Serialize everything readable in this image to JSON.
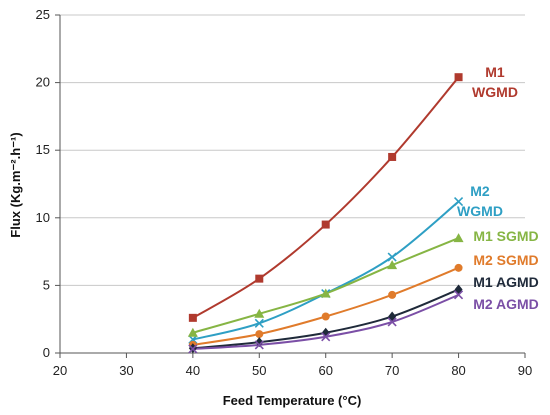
{
  "chart_data": {
    "type": "line",
    "xlabel": "Feed Temperature (°C)",
    "ylabel": "Flux (Kg.m⁻².h⁻¹)",
    "xlim": [
      20,
      90
    ],
    "ylim": [
      0,
      25
    ],
    "xticks": [
      "20",
      "30",
      "40",
      "50",
      "60",
      "70",
      "80",
      "90"
    ],
    "yticks": [
      "0",
      "5",
      "10",
      "15",
      "20",
      "25"
    ],
    "grid": "horizontal",
    "x": [
      40,
      50,
      60,
      70,
      80
    ],
    "series": [
      {
        "name": "M1 WGMD",
        "label_lines": [
          "M1",
          "WGMD"
        ],
        "color": "#b03a2e",
        "marker": "square",
        "values": [
          2.6,
          5.5,
          9.5,
          14.5,
          20.4
        ]
      },
      {
        "name": "M2 WGMD",
        "label_lines": [
          "M2",
          "WGMD"
        ],
        "color": "#2e9fc4",
        "marker": "x",
        "values": [
          1.0,
          2.2,
          4.4,
          7.1,
          11.2
        ]
      },
      {
        "name": "M1 SGMD",
        "label_lines": [
          "M1 SGMD"
        ],
        "color": "#86b544",
        "marker": "triangle",
        "values": [
          1.5,
          2.9,
          4.4,
          6.5,
          8.5
        ]
      },
      {
        "name": "M2 SGMD",
        "label_lines": [
          "M2 SGMD"
        ],
        "color": "#e07b2b",
        "marker": "circle",
        "values": [
          0.6,
          1.4,
          2.7,
          4.3,
          6.3
        ]
      },
      {
        "name": "M1 AGMD",
        "label_lines": [
          "M1 AGMD"
        ],
        "color": "#1f2a3a",
        "marker": "diamond",
        "values": [
          0.35,
          0.8,
          1.5,
          2.7,
          4.7
        ]
      },
      {
        "name": "M2 AGMD",
        "label_lines": [
          "M2 AGMD"
        ],
        "color": "#7b4fa6",
        "marker": "x",
        "values": [
          0.3,
          0.6,
          1.2,
          2.3,
          4.3
        ]
      }
    ]
  }
}
